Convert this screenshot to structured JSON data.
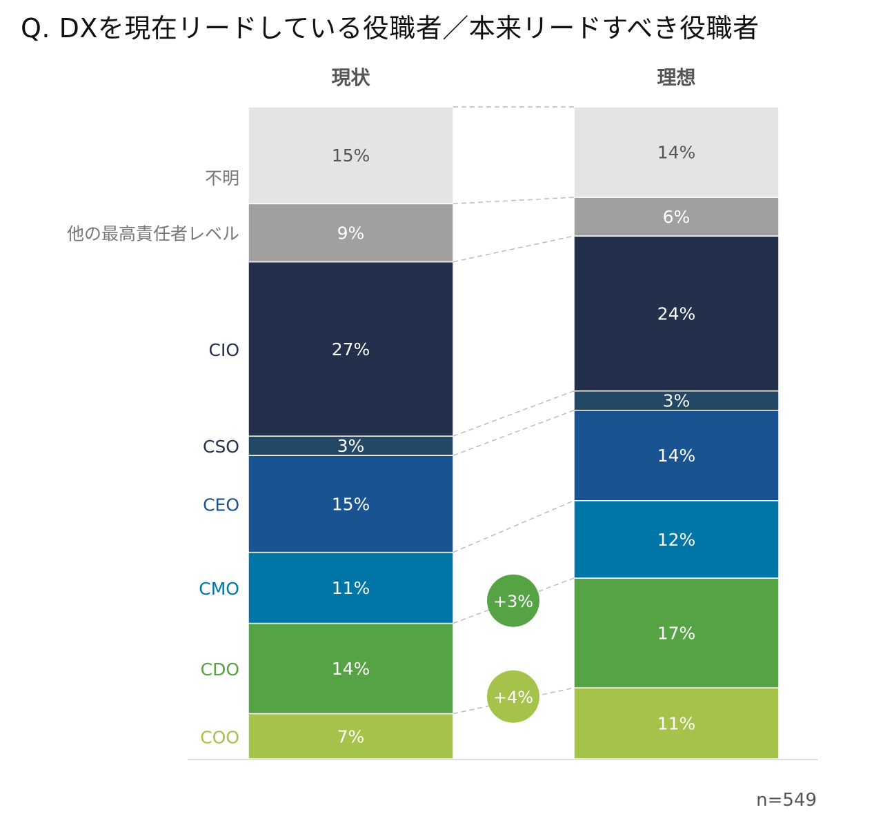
{
  "title": "Q. DXを現在リードしている役職者／本来リードすべき役職者",
  "note": "n=549",
  "chart_data": {
    "type": "stacked-bar",
    "title": "Q. DXを現在リードしている役職者／本来リードすべき役職者",
    "categories": [
      "現状",
      "理想"
    ],
    "unit": "%",
    "series": [
      {
        "name": "COO",
        "values": [
          7,
          11
        ],
        "color": "#a5c24a"
      },
      {
        "name": "CDO",
        "values": [
          14,
          17
        ],
        "color": "#56a345"
      },
      {
        "name": "CMO",
        "values": [
          11,
          12
        ],
        "color": "#0076a6"
      },
      {
        "name": "CEO",
        "values": [
          15,
          14
        ],
        "color": "#1a5391"
      },
      {
        "name": "CSO",
        "values": [
          3,
          3
        ],
        "color": "#224866"
      },
      {
        "name": "CIO",
        "values": [
          27,
          24
        ],
        "color": "#22304b"
      },
      {
        "name": "他の最高責任者レベル",
        "values": [
          9,
          6
        ],
        "color": "#a0a0a0"
      },
      {
        "name": "不明",
        "values": [
          15,
          14
        ],
        "color": "#e3e4e4"
      }
    ],
    "label_colors": {
      "COO": "#a5c24a",
      "CDO": "#56a345",
      "CMO": "#0076a6",
      "CEO": "#1a5391",
      "CSO": "#22304b",
      "CIO": "#22304b",
      "他の最高責任者レベル": "#777777",
      "不明": "#777777"
    },
    "annotations": [
      {
        "series": "CDO",
        "text": "+3%",
        "color": "#56a345"
      },
      {
        "series": "COO",
        "text": "+4%",
        "color": "#a5c24a"
      }
    ]
  }
}
